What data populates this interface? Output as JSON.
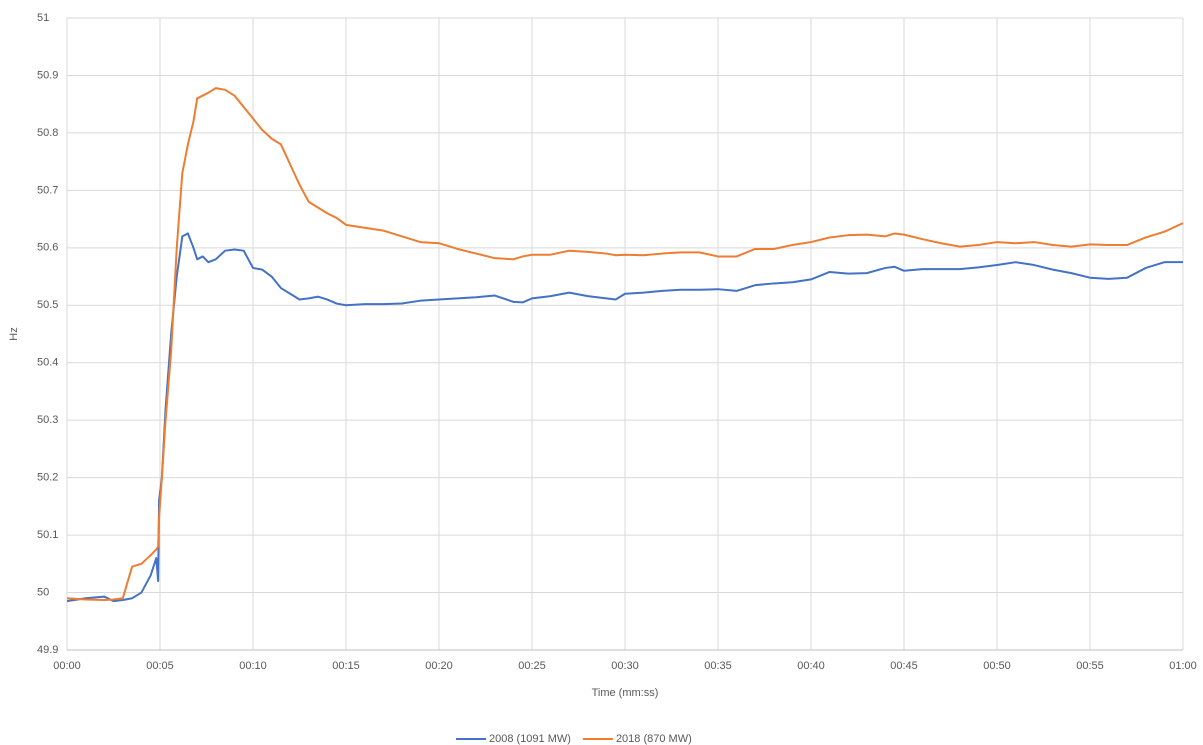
{
  "chart_data": {
    "type": "line",
    "x_label": "Time (mm:ss)",
    "y_label": "Hz",
    "x": [
      0,
      1,
      2,
      2.5,
      3,
      3.5,
      4,
      4.5,
      4.8,
      4.9,
      4.95,
      5.1,
      5.3,
      5.6,
      5.9,
      6.2,
      6.5,
      6.8,
      7,
      7.3,
      7.6,
      8,
      8.5,
      9,
      9.5,
      10,
      10.5,
      11,
      11.5,
      12,
      12.5,
      13,
      13.5,
      14,
      14.5,
      15,
      16,
      17,
      18,
      19,
      20,
      21,
      22,
      23,
      24,
      24.5,
      25,
      26,
      27,
      28,
      29,
      29.5,
      30,
      31,
      32,
      33,
      34,
      35,
      36,
      37,
      38,
      39,
      40,
      41,
      42,
      43,
      44,
      44.5,
      45,
      46,
      47,
      48,
      49,
      50,
      51,
      52,
      53,
      54,
      55,
      56,
      57,
      58,
      59,
      60
    ],
    "series": [
      {
        "name": "2008 (1091 MW)",
        "color": "#4472c4",
        "values": [
          49.985,
          49.99,
          49.993,
          49.985,
          49.987,
          49.99,
          50.0,
          50.03,
          50.06,
          50.02,
          50.16,
          50.2,
          50.32,
          50.45,
          50.55,
          50.62,
          50.625,
          50.6,
          50.58,
          50.585,
          50.575,
          50.58,
          50.595,
          50.597,
          50.595,
          50.565,
          50.562,
          50.55,
          50.53,
          50.52,
          50.51,
          50.512,
          50.515,
          50.51,
          50.503,
          50.5,
          50.502,
          50.502,
          50.503,
          50.508,
          50.51,
          50.512,
          50.514,
          50.517,
          50.506,
          50.505,
          50.512,
          50.516,
          50.522,
          50.516,
          50.512,
          50.51,
          50.52,
          50.522,
          50.525,
          50.527,
          50.527,
          50.528,
          50.525,
          50.535,
          50.538,
          50.54,
          50.545,
          50.558,
          50.555,
          50.556,
          50.565,
          50.567,
          50.56,
          50.563,
          50.563,
          50.563,
          50.566,
          50.57,
          50.575,
          50.57,
          50.562,
          50.556,
          50.548,
          50.546,
          50.548,
          50.565,
          50.575,
          50.575
        ]
      },
      {
        "name": "2018 (870 MW)",
        "color": "#ed7d31",
        "values": [
          49.99,
          49.988,
          49.987,
          49.988,
          49.99,
          50.045,
          50.05,
          50.065,
          50.075,
          50.08,
          50.13,
          50.2,
          50.3,
          50.42,
          50.6,
          50.73,
          50.78,
          50.82,
          50.86,
          50.865,
          50.87,
          50.878,
          50.875,
          50.865,
          50.845,
          50.825,
          50.805,
          50.79,
          50.78,
          50.745,
          50.71,
          50.68,
          50.67,
          50.66,
          50.652,
          50.64,
          50.635,
          50.63,
          50.62,
          50.61,
          50.608,
          50.598,
          50.59,
          50.582,
          50.58,
          50.585,
          50.588,
          50.588,
          50.595,
          50.593,
          50.59,
          50.587,
          50.588,
          50.587,
          50.59,
          50.592,
          50.592,
          50.585,
          50.585,
          50.598,
          50.598,
          50.605,
          50.61,
          50.618,
          50.622,
          50.623,
          50.62,
          50.625,
          50.623,
          50.615,
          50.608,
          50.602,
          50.605,
          50.61,
          50.608,
          50.61,
          50.605,
          50.602,
          50.606,
          50.605,
          50.605,
          50.618,
          50.628,
          50.643
        ]
      }
    ],
    "xlim": [
      0,
      60
    ],
    "xticks": [
      {
        "value": 0,
        "label": "00:00"
      },
      {
        "value": 5,
        "label": "00:05"
      },
      {
        "value": 10,
        "label": "00:10"
      },
      {
        "value": 15,
        "label": "00:15"
      },
      {
        "value": 20,
        "label": "00:20"
      },
      {
        "value": 25,
        "label": "00:25"
      },
      {
        "value": 30,
        "label": "00:30"
      },
      {
        "value": 35,
        "label": "00:35"
      },
      {
        "value": 40,
        "label": "00:40"
      },
      {
        "value": 45,
        "label": "00:45"
      },
      {
        "value": 50,
        "label": "00:50"
      },
      {
        "value": 55,
        "label": "00:55"
      },
      {
        "value": 60,
        "label": "01:00"
      }
    ],
    "ylim": [
      49.9,
      51
    ],
    "yticks": [
      49.9,
      50,
      50.1,
      50.2,
      50.3,
      50.4,
      50.5,
      50.6,
      50.7,
      50.8,
      50.9,
      51
    ],
    "grid": true,
    "legend": "bottom"
  }
}
